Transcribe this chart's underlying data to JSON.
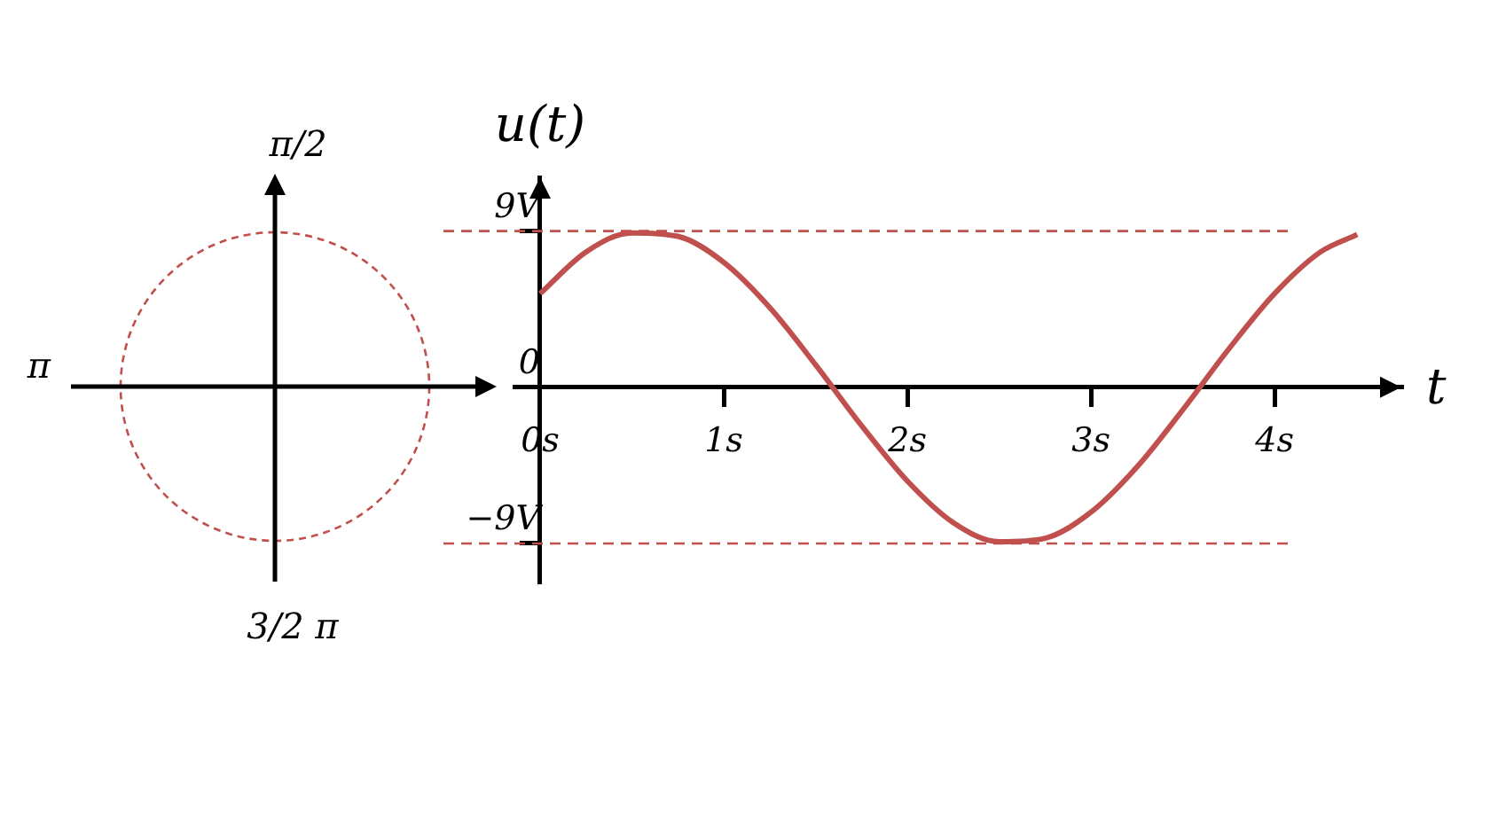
{
  "chart_data": {
    "type": "line",
    "xlabel": "t",
    "ylabel": "u(t)",
    "x": [
      0,
      0.25,
      0.5,
      0.75,
      1,
      1.25,
      1.5,
      1.75,
      2,
      2.25,
      2.5,
      2.75,
      3,
      3.25,
      3.5,
      3.75,
      4,
      4.25,
      4.45
    ],
    "series": [
      {
        "color": "#c0504d",
        "values": [
          5.4,
          7.8,
          8.9,
          8.7,
          7.2,
          4.6,
          1.3,
          -2.2,
          -5.4,
          -7.8,
          -8.9,
          -8.7,
          -7.2,
          -4.6,
          -1.3,
          2.2,
          5.4,
          7.8,
          8.8
        ]
      }
    ],
    "xlim": [
      -0.14,
      4.69
    ],
    "ylim": [
      -11.2,
      12.1
    ],
    "xticks": [
      {
        "value": 0,
        "label": "0s"
      },
      {
        "value": 1,
        "label": "1s"
      },
      {
        "value": 2,
        "label": "2s"
      },
      {
        "value": 3,
        "label": "3s"
      },
      {
        "value": 4,
        "label": "4s"
      }
    ],
    "yticks": [
      {
        "value": 9,
        "label": "9V"
      },
      0,
      {
        "value": -9,
        "label": "−9V"
      }
    ],
    "ref_lines": [
      {
        "axis": "y",
        "value": 9,
        "color": "#c0504d",
        "line_style": "dashed"
      },
      {
        "axis": "y",
        "value": -9,
        "color": "#c0504d",
        "line_style": "dashed"
      }
    ],
    "annotations": [
      "π/2",
      "π",
      "3/2 π"
    ],
    "grid": false,
    "legend": false,
    "marker": "none",
    "line_style": "solid"
  }
}
